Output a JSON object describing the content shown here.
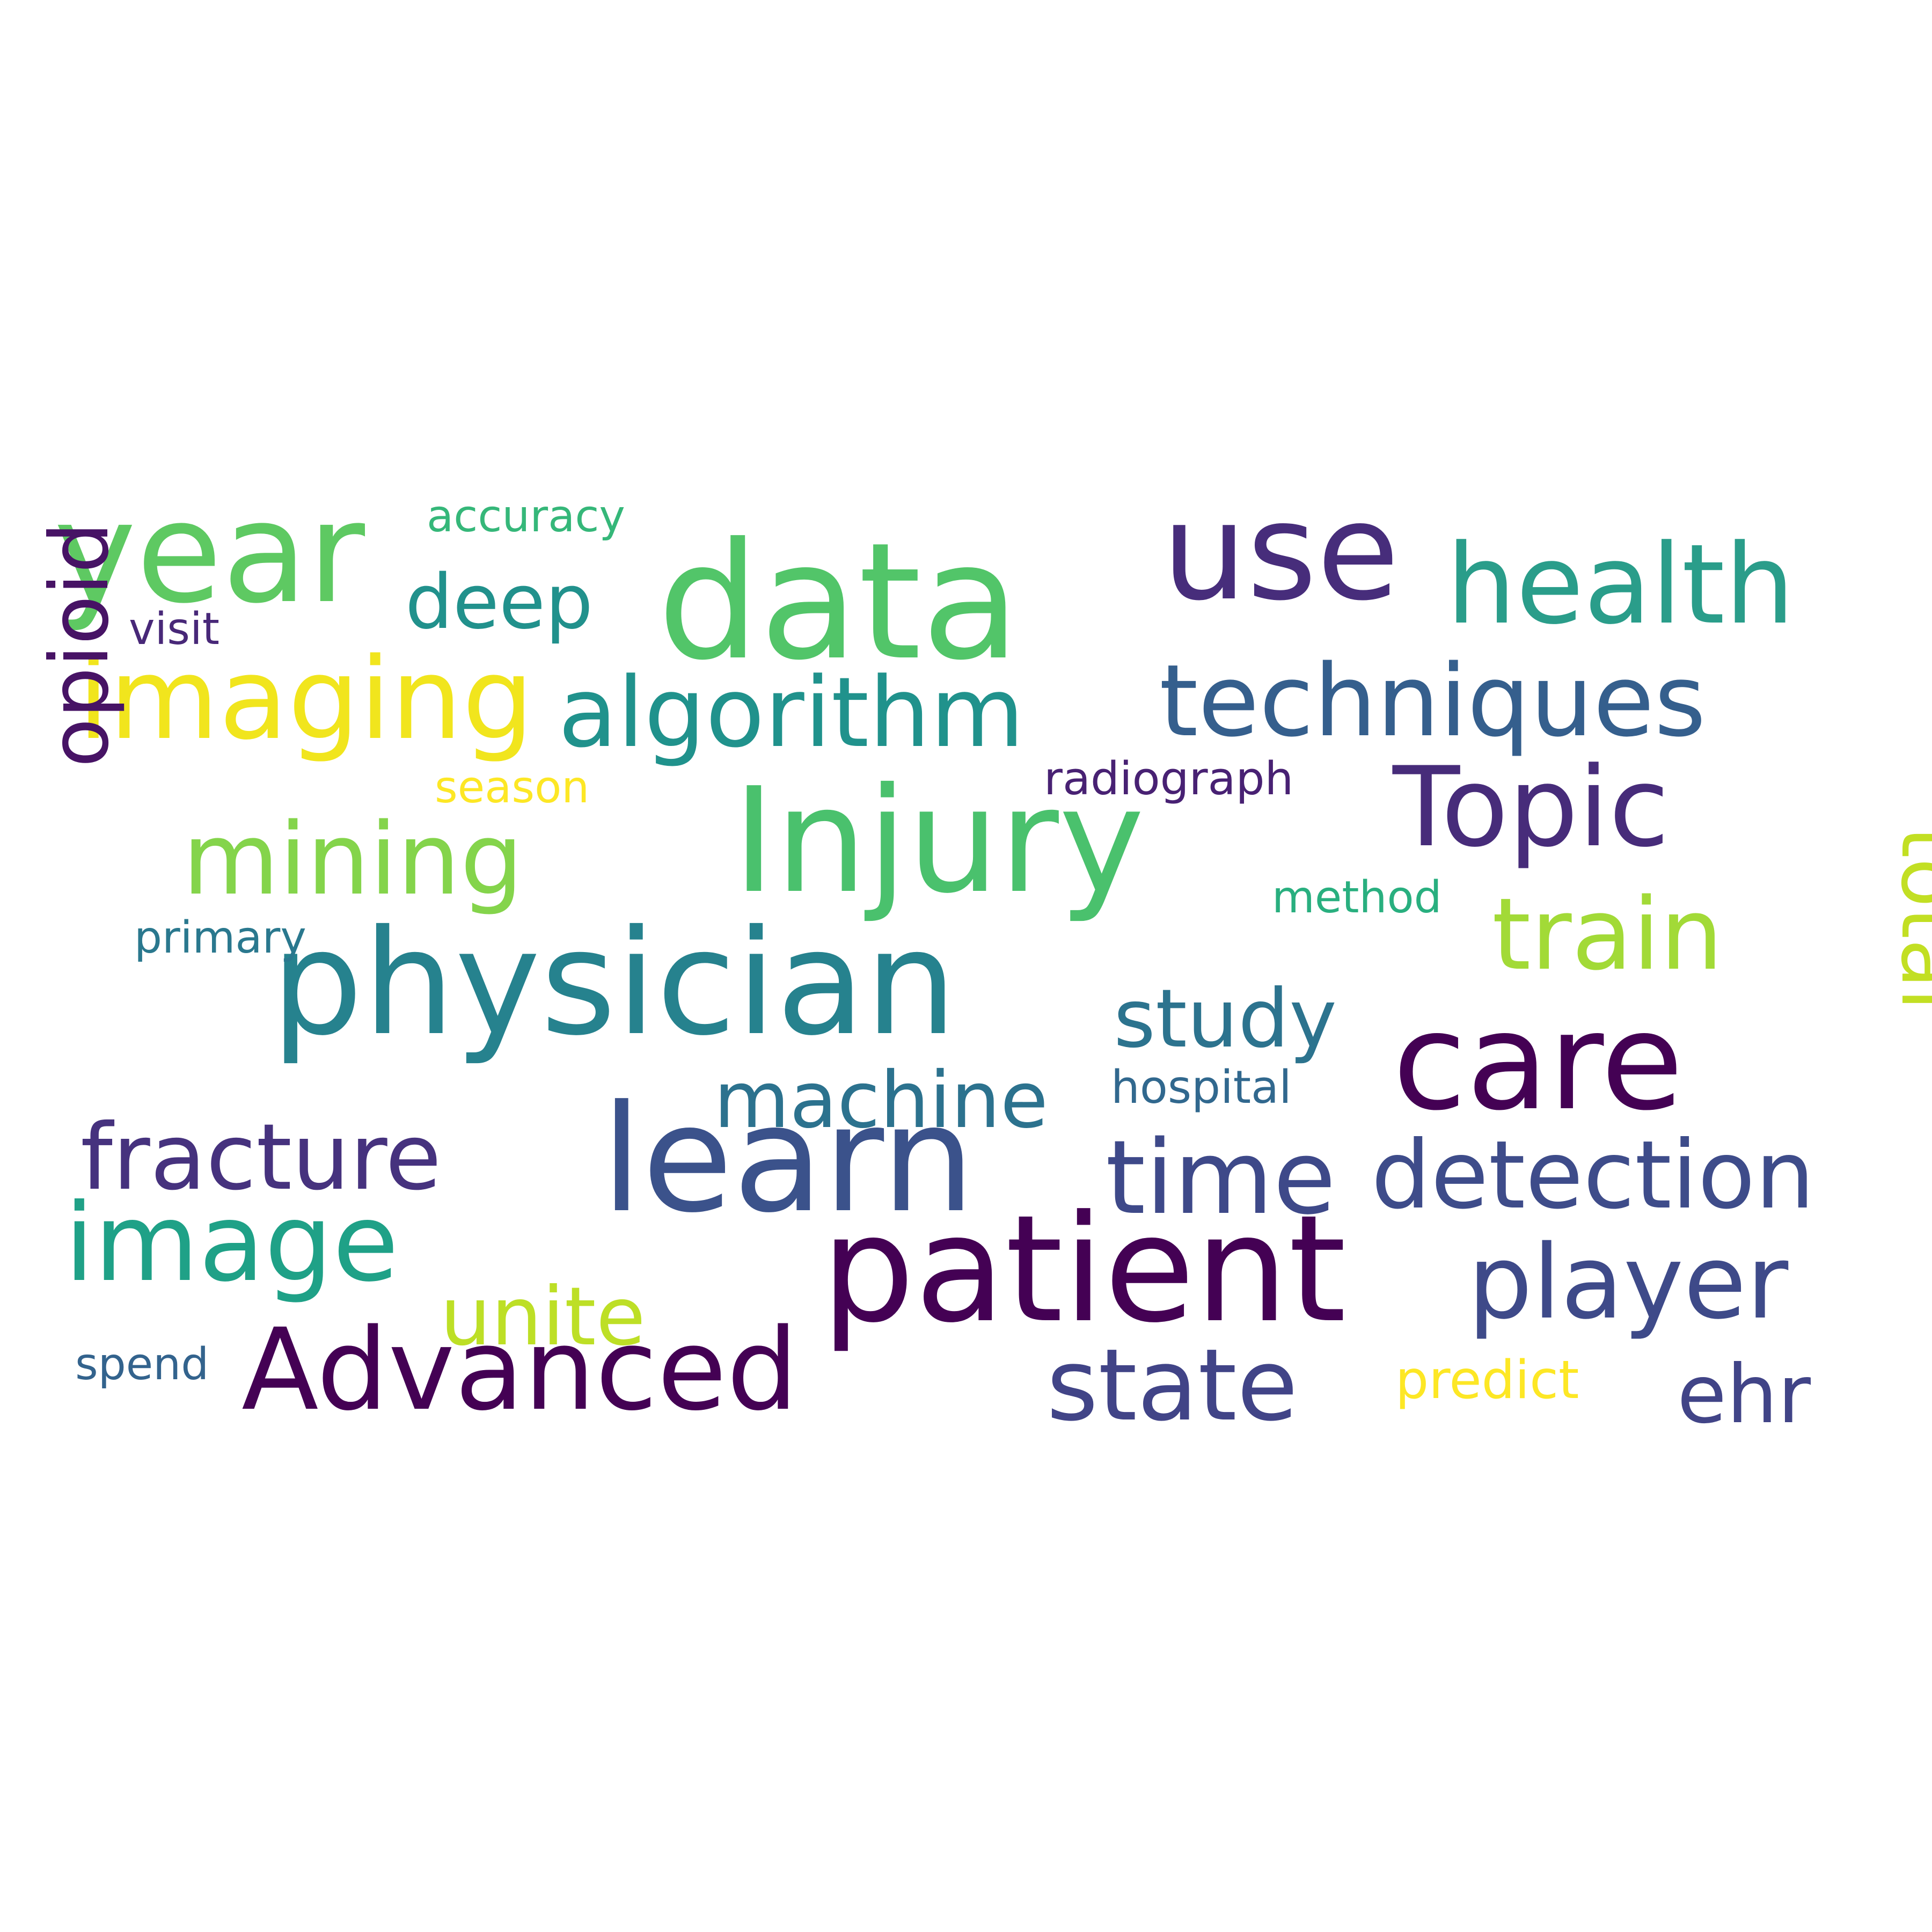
{
  "wordcloud": {
    "words": [
      {
        "text": "data",
        "color": "#52c569"
      },
      {
        "text": "Injury",
        "color": "#4ac16d"
      },
      {
        "text": "physician",
        "color": "#26828e"
      },
      {
        "text": "patient",
        "color": "#440154"
      },
      {
        "text": "learn",
        "color": "#3b528b"
      },
      {
        "text": "year",
        "color": "#5ec962"
      },
      {
        "text": "use",
        "color": "#472d7b"
      },
      {
        "text": "care",
        "color": "#440154"
      },
      {
        "text": "health",
        "color": "#2a9d8a"
      },
      {
        "text": "techniques",
        "color": "#355f8d"
      },
      {
        "text": "imaging",
        "color": "#f1e51d"
      },
      {
        "text": "algorithm",
        "color": "#20928c"
      },
      {
        "text": "Topic",
        "color": "#472c7a"
      },
      {
        "text": "mining",
        "color": "#84d44b"
      },
      {
        "text": "train",
        "color": "#a2da37"
      },
      {
        "text": "Advanced",
        "color": "#440154"
      },
      {
        "text": "player",
        "color": "#3e4a89"
      },
      {
        "text": "detection",
        "color": "#3e4c8a"
      },
      {
        "text": "time",
        "color": "#3e4989"
      },
      {
        "text": "fracture",
        "color": "#46327e"
      },
      {
        "text": "image",
        "color": "#1fa187"
      },
      {
        "text": "state",
        "color": "#414487"
      },
      {
        "text": "machine",
        "color": "#2c728e"
      },
      {
        "text": "study",
        "color": "#2c738e"
      },
      {
        "text": "deep",
        "color": "#21918c"
      },
      {
        "text": "opioid",
        "color": "#471365"
      },
      {
        "text": "total",
        "color": "#c2df23"
      },
      {
        "text": "unite",
        "color": "#bddf26"
      },
      {
        "text": "ehr",
        "color": "#414487"
      },
      {
        "text": "radiograph",
        "color": "#482173"
      },
      {
        "text": "hospital",
        "color": "#31688e"
      },
      {
        "text": "accuracy",
        "color": "#35b779"
      },
      {
        "text": "season",
        "color": "#fde725"
      },
      {
        "text": "method",
        "color": "#29af7f"
      },
      {
        "text": "primary",
        "color": "#2a788e"
      },
      {
        "text": "visit",
        "color": "#482878"
      },
      {
        "text": "spend",
        "color": "#33638d"
      },
      {
        "text": "predict",
        "color": "#fde725"
      }
    ]
  }
}
